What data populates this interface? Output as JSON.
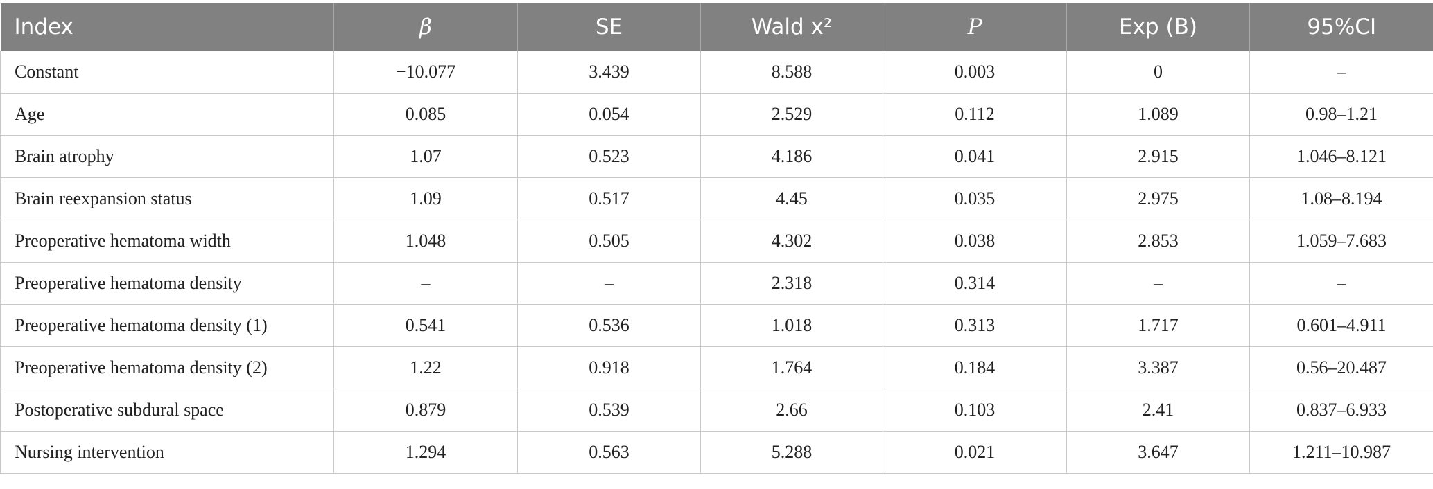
{
  "table": {
    "header": [
      "Index",
      "β",
      "SE",
      "Wald x²",
      "P",
      "Exp (B)",
      "95%CI"
    ],
    "rows": [
      [
        "Constant",
        "−10.077",
        "3.439",
        "8.588",
        "0.003",
        "0",
        "–"
      ],
      [
        "Age",
        "0.085",
        "0.054",
        "2.529",
        "0.112",
        "1.089",
        "0.98–1.21"
      ],
      [
        "Brain atrophy",
        "1.07",
        "0.523",
        "4.186",
        "0.041",
        "2.915",
        "1.046–8.121"
      ],
      [
        "Brain reexpansion status",
        "1.09",
        "0.517",
        "4.45",
        "0.035",
        "2.975",
        "1.08–8.194"
      ],
      [
        "Preoperative hematoma width",
        "1.048",
        "0.505",
        "4.302",
        "0.038",
        "2.853",
        "1.059–7.683"
      ],
      [
        "Preoperative hematoma density",
        "–",
        "–",
        "2.318",
        "0.314",
        "–",
        "–"
      ],
      [
        "Preoperative hematoma density (1)",
        "0.541",
        "0.536",
        "1.018",
        "0.313",
        "1.717",
        "0.601–4.911"
      ],
      [
        "Preoperative hematoma density (2)",
        "1.22",
        "0.918",
        "1.764",
        "0.184",
        "3.387",
        "0.56–20.487"
      ],
      [
        "Postoperative subdural space",
        "0.879",
        "0.539",
        "2.66",
        "0.103",
        "2.41",
        "0.837–6.933"
      ],
      [
        "Nursing intervention",
        "1.294",
        "0.563",
        "5.288",
        "0.021",
        "3.647",
        "1.211–10.987"
      ]
    ]
  }
}
